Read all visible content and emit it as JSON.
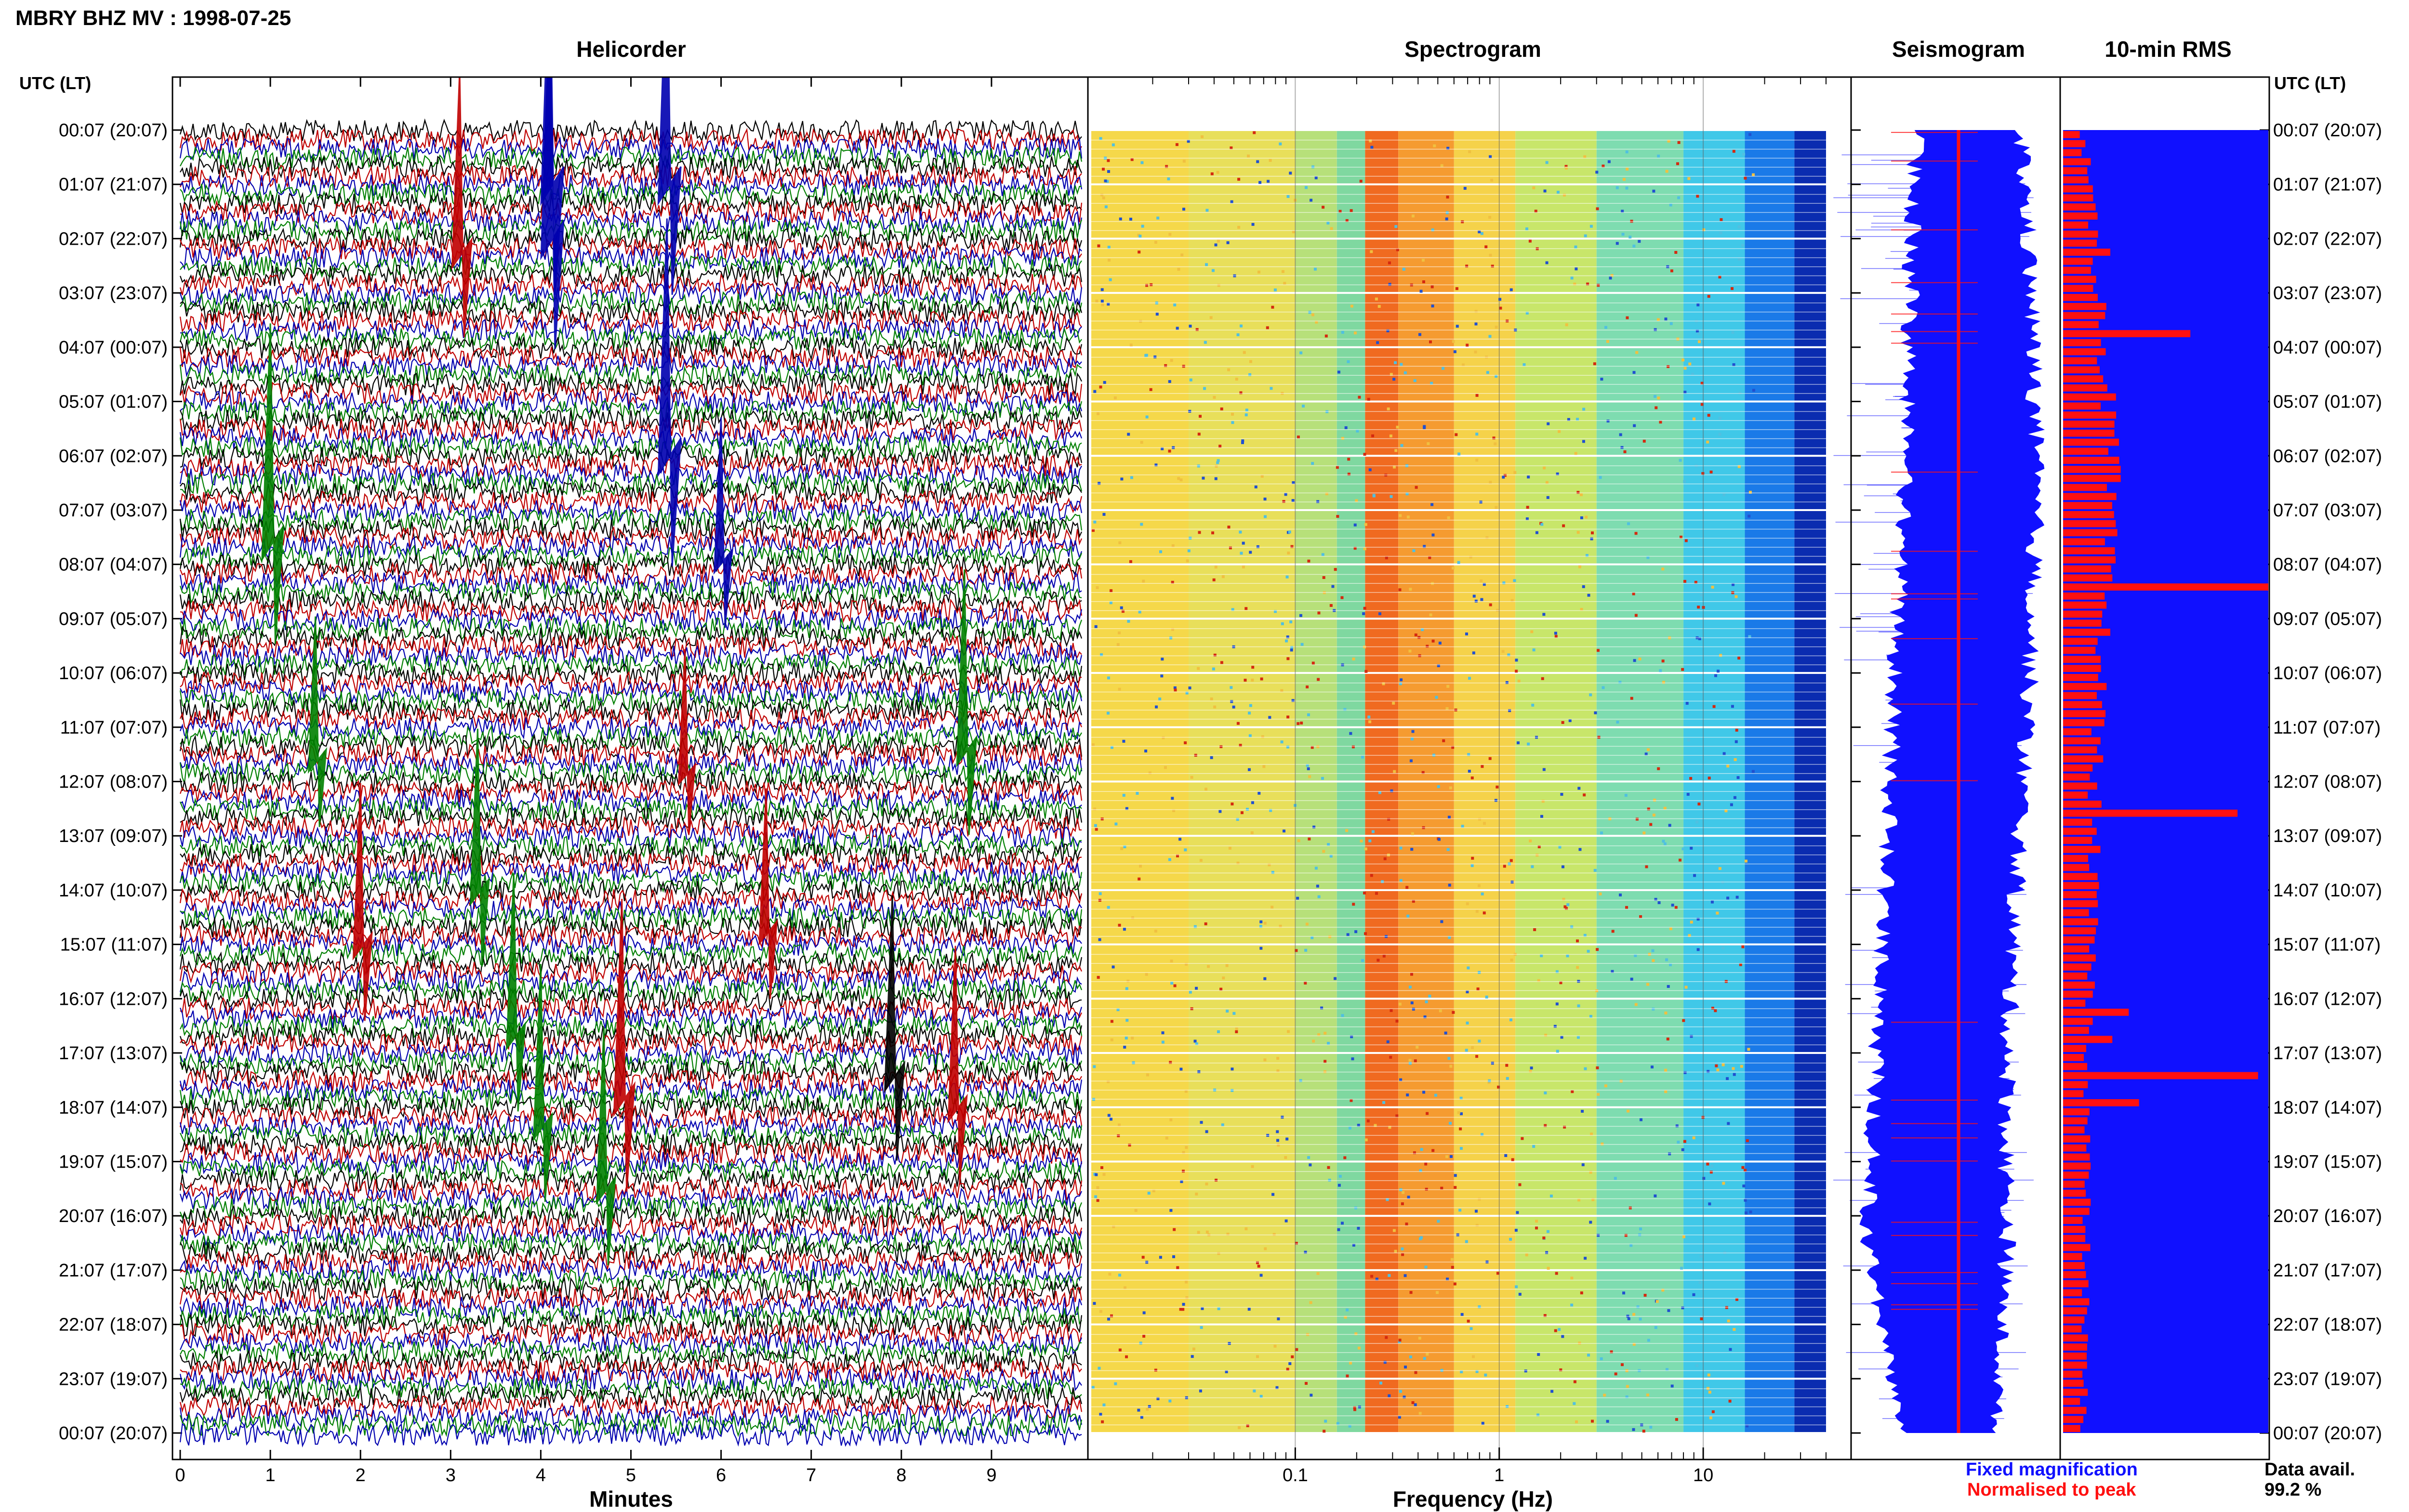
{
  "header": {
    "station_title": "MBRY BHZ MV : 1998-07-25"
  },
  "panels": {
    "helicorder": "Helicorder",
    "spectrogram": "Spectrogram",
    "seismogram": "Seismogram",
    "rms": "10-min RMS"
  },
  "time_axis": {
    "header_left": "UTC (LT)",
    "header_right": "UTC (LT)",
    "labels": [
      "00:07 (20:07)",
      "01:07 (21:07)",
      "02:07 (22:07)",
      "03:07 (23:07)",
      "04:07 (00:07)",
      "05:07 (01:07)",
      "06:07 (02:07)",
      "07:07 (03:07)",
      "08:07 (04:07)",
      "09:07 (05:07)",
      "10:07 (06:07)",
      "11:07 (07:07)",
      "12:07 (08:07)",
      "13:07 (09:07)",
      "14:07 (10:07)",
      "15:07 (11:07)",
      "16:07 (12:07)",
      "17:07 (13:07)",
      "18:07 (14:07)",
      "19:07 (15:07)",
      "20:07 (16:07)",
      "21:07 (17:07)",
      "22:07 (18:07)",
      "23:07 (19:07)",
      "00:07 (20:07)"
    ]
  },
  "helicorder_axis": {
    "xlabel": "Minutes",
    "ticks": [
      "0",
      "1",
      "2",
      "3",
      "4",
      "5",
      "6",
      "7",
      "8",
      "9"
    ],
    "trace_colors": [
      "#000000",
      "#c00000",
      "#0000b0",
      "#008000"
    ]
  },
  "spectrogram_axis": {
    "xlabel": "Frequency (Hz)",
    "ticks": [
      "0.1",
      "1",
      "10"
    ]
  },
  "legend": {
    "fixed": "Fixed magnification",
    "fixed_color": "#1010ff",
    "normalised": "Normalised to peak",
    "normalised_color": "#ff1010",
    "avail_label": "Data avail.",
    "avail_value": "99.2 %"
  },
  "chart_data": [
    {
      "type": "line",
      "title": "Helicorder",
      "xlabel": "Minutes",
      "xlim": [
        0,
        10
      ],
      "rows": 144,
      "events": [
        {
          "row": 0,
          "minute": 4.1,
          "amp": 1.0,
          "color": "#0000b0"
        },
        {
          "row": 0,
          "minute": 5.4,
          "amp": 1.0,
          "color": "#0000b0"
        },
        {
          "row": 6,
          "minute": 4.1,
          "amp": 1.0,
          "color": "#0000b0"
        },
        {
          "row": 9,
          "minute": 3.1,
          "amp": 0.7,
          "color": "#c00000"
        },
        {
          "row": 30,
          "minute": 5.4,
          "amp": 1.0,
          "color": "#0000b0"
        },
        {
          "row": 40,
          "minute": 1.0,
          "amp": 0.9,
          "color": "#008000"
        },
        {
          "row": 44,
          "minute": 6.0,
          "amp": 0.5,
          "color": "#0000b0"
        },
        {
          "row": 64,
          "minute": 8.7,
          "amp": 0.7,
          "color": "#008000"
        },
        {
          "row": 66,
          "minute": 1.5,
          "amp": 0.5,
          "color": "#008000"
        },
        {
          "row": 68,
          "minute": 5.6,
          "amp": 0.4,
          "color": "#c00000"
        },
        {
          "row": 80,
          "minute": 3.3,
          "amp": 0.6,
          "color": "#008000"
        },
        {
          "row": 85,
          "minute": 6.5,
          "amp": 0.5,
          "color": "#c00000"
        },
        {
          "row": 86,
          "minute": 2.0,
          "amp": 0.6,
          "color": "#c00000"
        },
        {
          "row": 96,
          "minute": 3.7,
          "amp": 0.6,
          "color": "#008000"
        },
        {
          "row": 100,
          "minute": 7.9,
          "amp": 0.7,
          "color": "#000000"
        },
        {
          "row": 102,
          "minute": 4.9,
          "amp": 0.8,
          "color": "#c00000"
        },
        {
          "row": 104,
          "minute": 8.6,
          "amp": 0.6,
          "color": "#c00000"
        },
        {
          "row": 106,
          "minute": 4.0,
          "amp": 0.6,
          "color": "#008000"
        },
        {
          "row": 113,
          "minute": 4.7,
          "amp": 0.6,
          "color": "#008000"
        }
      ]
    },
    {
      "type": "heatmap",
      "title": "Spectrogram",
      "xlabel": "Frequency (Hz)",
      "xscale": "log",
      "xlim": [
        0.01,
        40
      ],
      "rows": 144,
      "peak_band_hz": [
        0.22,
        0.6
      ]
    },
    {
      "type": "line",
      "title": "Seismogram",
      "series": [
        {
          "name": "Fixed magnification",
          "color": "#1010ff"
        },
        {
          "name": "Normalised to peak",
          "color": "#ff1010"
        }
      ]
    },
    {
      "type": "bar",
      "title": "10-min RMS",
      "orientation": "horizontal",
      "rows": 144,
      "bar_color": "#ff1010",
      "background_color": "#1010ff",
      "spikes": [
        {
          "row": 13,
          "value": 0.23
        },
        {
          "row": 22,
          "value": 0.62
        },
        {
          "row": 50,
          "value": 1.0
        },
        {
          "row": 73,
          "value": 0.12
        },
        {
          "row": 75,
          "value": 0.85
        },
        {
          "row": 97,
          "value": 0.32
        },
        {
          "row": 100,
          "value": 0.24
        },
        {
          "row": 104,
          "value": 0.95
        },
        {
          "row": 107,
          "value": 0.37
        }
      ],
      "base_profile": [
        0.1,
        0.18,
        0.24,
        0.2,
        0.16,
        0.14,
        0.12,
        0.11,
        0.1
      ]
    }
  ]
}
